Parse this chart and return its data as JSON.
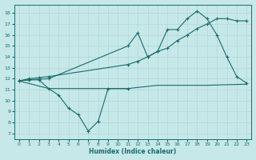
{
  "xlabel": "Humidex (Indice chaleur)",
  "bg_color": "#c6e8e8",
  "line_color": "#1a6b6b",
  "grid_color": "#b0d8d8",
  "xlim": [
    -0.5,
    23.5
  ],
  "ylim": [
    6.5,
    18.8
  ],
  "yticks": [
    7,
    8,
    9,
    10,
    11,
    12,
    13,
    14,
    15,
    16,
    17,
    18
  ],
  "xticks": [
    0,
    1,
    2,
    3,
    4,
    5,
    6,
    7,
    8,
    9,
    10,
    11,
    12,
    13,
    14,
    15,
    16,
    17,
    18,
    19,
    20,
    21,
    22,
    23
  ],
  "line1_x": [
    0,
    1,
    2,
    3,
    11,
    12,
    13,
    14,
    15,
    16,
    17,
    18,
    19,
    20,
    21,
    22,
    23
  ],
  "line1_y": [
    11.8,
    11.9,
    11.95,
    12.0,
    15.0,
    16.2,
    14.0,
    14.5,
    16.5,
    16.5,
    17.5,
    18.2,
    17.5,
    16.0,
    14.0,
    12.2,
    11.6
  ],
  "line2_x": [
    0,
    1,
    2,
    3,
    11,
    12,
    13,
    14,
    15,
    16,
    17,
    18,
    19,
    20,
    21,
    22,
    23
  ],
  "line2_y": [
    11.8,
    12.0,
    12.1,
    12.2,
    13.3,
    13.6,
    14.0,
    14.5,
    14.8,
    15.5,
    16.0,
    16.6,
    17.0,
    17.5,
    17.5,
    17.3,
    17.3
  ],
  "line3_x": [
    0,
    1,
    2,
    3,
    4,
    5,
    6,
    7,
    8,
    9,
    11
  ],
  "line3_y": [
    11.8,
    11.9,
    11.9,
    11.1,
    10.5,
    9.3,
    8.7,
    7.2,
    8.1,
    11.1,
    11.1
  ],
  "line4_x": [
    0,
    3,
    9,
    11,
    14,
    19,
    23
  ],
  "line4_y": [
    11.8,
    11.1,
    11.1,
    11.1,
    11.4,
    11.4,
    11.5
  ]
}
